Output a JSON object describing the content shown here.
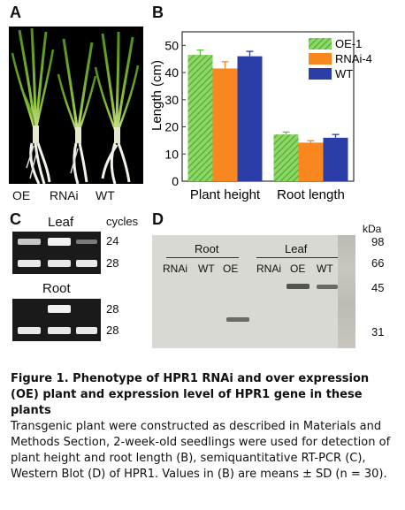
{
  "panels": {
    "a": {
      "letter": "A",
      "labels": [
        "OE",
        "RNAi",
        "WT"
      ]
    },
    "b": {
      "letter": "B"
    },
    "c": {
      "letter": "C",
      "leaf_title": "Leaf",
      "root_title": "Root",
      "cycles_header": "cycles",
      "leaf_cycles": [
        "24",
        "28"
      ],
      "root_cycles": [
        "28",
        "28"
      ]
    },
    "d": {
      "letter": "D",
      "group_root": "Root",
      "group_leaf": "Leaf",
      "lanes_root": [
        "RNAi",
        "WT",
        "OE"
      ],
      "lanes_leaf": [
        "RNAi",
        "OE",
        "WT"
      ],
      "kda_title": "kDa",
      "markers": [
        "98",
        "66",
        "45",
        "31"
      ]
    }
  },
  "chart_data": {
    "type": "bar",
    "categories": [
      "Plant height",
      "Root length"
    ],
    "ylabel": "Length (cm)",
    "ylim": [
      0,
      55
    ],
    "yticks": [
      0,
      10,
      20,
      30,
      40,
      50
    ],
    "legend_position": "top-right",
    "series": [
      {
        "name": "OE-1",
        "color": "#5cbf3a",
        "pattern": "hatch",
        "values": [
          46.5,
          17.2
        ],
        "errors": [
          1.8,
          0.9
        ]
      },
      {
        "name": "RNAi-4",
        "color": "#f7871e",
        "pattern": "solid",
        "values": [
          41.5,
          14.2
        ],
        "errors": [
          2.5,
          0.7
        ]
      },
      {
        "name": "WT",
        "color": "#2b3da6",
        "pattern": "solid",
        "values": [
          46.0,
          16.0
        ],
        "errors": [
          1.8,
          1.2
        ]
      }
    ]
  },
  "caption": {
    "title": "Figure 1.  Phenotype of HPR1 RNAi and over expression (OE) plant and expression level of HPR1 gene in these plants",
    "body": "Transgenic plant were constructed as described in Materials and Methods Section, 2-week-old seedlings were used for detection of plant height and root length (B), semiquantitative RT-PCR (C), Western Blot (D) of HPR1. Values in (B) are means ± SD (n = 30)."
  }
}
